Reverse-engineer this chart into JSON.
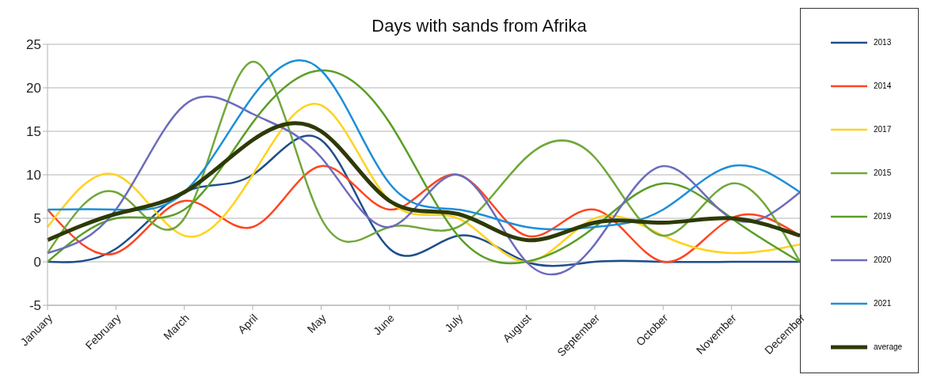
{
  "chart_data": {
    "type": "line",
    "title": "Days with sands from Afrika",
    "categories": [
      "January",
      "February",
      "March",
      "April",
      "May",
      "June",
      "July",
      "August",
      "September",
      "October",
      "November",
      "December"
    ],
    "series": [
      {
        "name": "2013",
        "color": "#1f4e8c",
        "values": [
          0,
          1.5,
          8,
          10,
          14,
          1.5,
          3,
          0,
          0,
          0,
          0,
          0
        ]
      },
      {
        "name": "2014",
        "color": "#ff4520",
        "values": [
          6,
          1,
          7,
          4,
          11,
          6,
          10,
          3,
          6,
          0,
          5,
          3
        ]
      },
      {
        "name": "2017",
        "color": "#ffd320",
        "values": [
          4,
          10,
          3,
          10,
          18,
          7,
          5,
          0,
          5,
          3,
          1,
          2
        ]
      },
      {
        "name": "2015",
        "color": "#70a83a",
        "values": [
          1,
          8,
          5,
          23,
          5,
          4,
          4,
          12,
          12,
          3,
          9,
          0
        ]
      },
      {
        "name": "2019",
        "color": "#5a9e26",
        "values": [
          0,
          5,
          6,
          16,
          22,
          16,
          3,
          0,
          4,
          9,
          5,
          0
        ]
      },
      {
        "name": "2020",
        "color": "#6b6bbd",
        "values": [
          1,
          6,
          18,
          17,
          12,
          4,
          10,
          0,
          2,
          11,
          5,
          8
        ]
      },
      {
        "name": "2021",
        "color": "#1c8fd8",
        "values": [
          6,
          6,
          8,
          19,
          22,
          9,
          6,
          4,
          4,
          6,
          11,
          8
        ]
      },
      {
        "name": "average",
        "color": "#2d3a06",
        "values": [
          2.5,
          5.5,
          8,
          14,
          15,
          7,
          5.5,
          2.5,
          4.5,
          4.5,
          5,
          3
        ]
      }
    ],
    "ylim": [
      -5,
      25
    ],
    "yticks": [
      -5,
      0,
      5,
      10,
      15,
      20,
      25
    ],
    "grid": "y",
    "legend": "right",
    "marker": "none",
    "line_style": "solid"
  }
}
